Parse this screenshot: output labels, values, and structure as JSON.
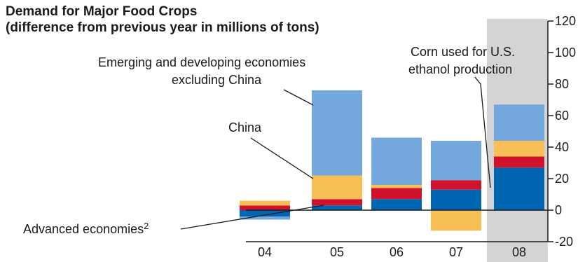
{
  "chart_data": {
    "type": "bar",
    "stacked": true,
    "title": "Demand for Major Food Crops",
    "subtitle": "(difference from previous year in millions of tons)",
    "categories": [
      "04",
      "05",
      "06",
      "07",
      "08"
    ],
    "highlighted_category": "08",
    "ylim": [
      -20,
      120
    ],
    "yticks": [
      -20,
      0,
      20,
      40,
      60,
      80,
      100,
      120
    ],
    "y_axis_position": "right",
    "grid": false,
    "series": [
      {
        "key": "advanced",
        "color": "#0066b3",
        "values": [
          -4,
          3,
          7,
          13,
          27
        ]
      },
      {
        "key": "corn",
        "color": "#d0122c",
        "values": [
          3,
          4,
          7,
          6,
          7
        ]
      },
      {
        "key": "china",
        "color": "#f9bf57",
        "values": [
          3,
          15,
          2,
          -13,
          10
        ]
      },
      {
        "key": "emerging",
        "color": "#74a7dc",
        "values": [
          -2,
          54,
          30,
          25,
          23
        ]
      }
    ],
    "annotations": {
      "emerging_line1": "Emerging and developing economies",
      "emerging_line2": "excluding China",
      "china": "China",
      "corn_line1": "Corn used for U.S.",
      "corn_line2": "ethanol production",
      "advanced": "Advanced economies",
      "advanced_sup": "2"
    },
    "colors": {
      "highlight_bg": "#d4d4d4",
      "axis": "#1a1a1a"
    }
  }
}
